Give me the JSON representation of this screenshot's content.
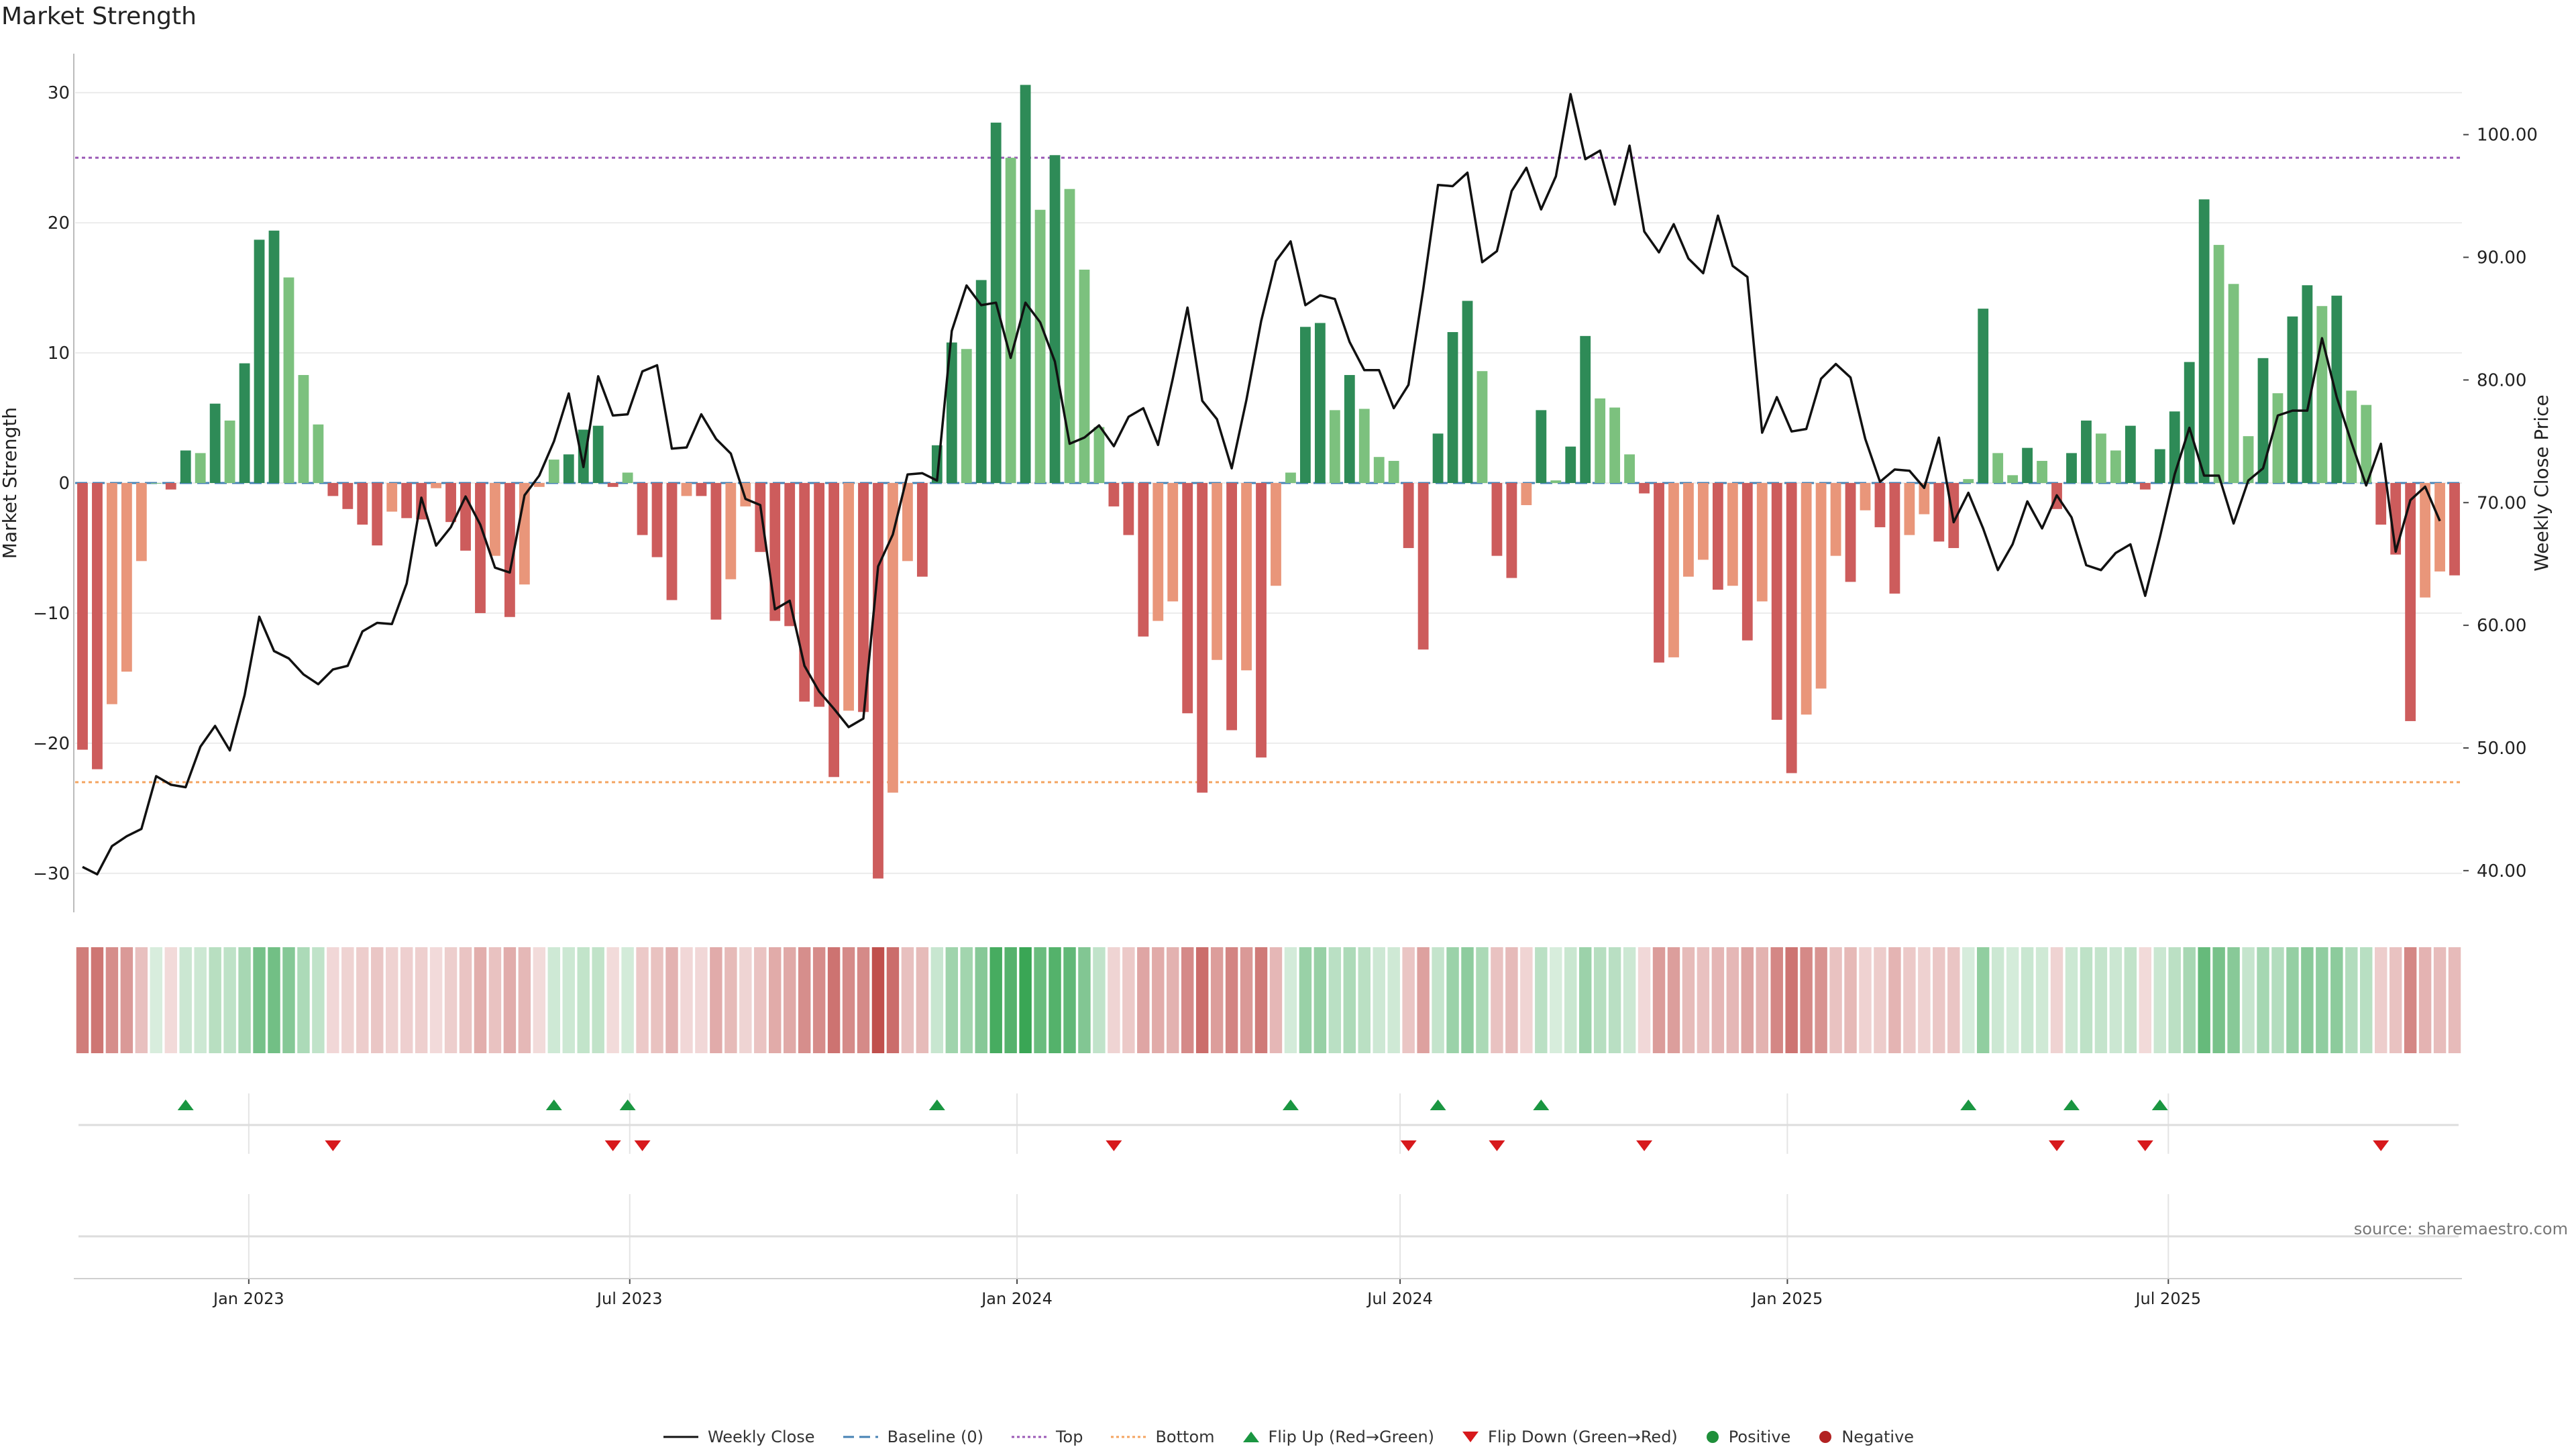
{
  "title": "Market Strength",
  "source": "source: sharemaestro.com",
  "colors": {
    "pos_strong": "#2e8b57",
    "pos_light": "#7cc17e",
    "neg_strong": "#cd5c5c",
    "neg_light": "#e9967a",
    "close_line": "#111111",
    "baseline": "#4682b4",
    "top": "#9b59b6",
    "bottom": "#f4a460",
    "flip_up": "#1a9641",
    "flip_down": "#d7191c"
  },
  "legend": [
    {
      "label": "Weekly Close",
      "kind": "line"
    },
    {
      "label": "Baseline (0)",
      "kind": "dash"
    },
    {
      "label": "Top",
      "kind": "dot-purple"
    },
    {
      "label": "Bottom",
      "kind": "dot-orange"
    },
    {
      "label": "Flip Up (Red→Green)",
      "kind": "tri-up"
    },
    {
      "label": "Flip Down (Green→Red)",
      "kind": "tri-down"
    },
    {
      "label": "Positive",
      "kind": "dot-green"
    },
    {
      "label": "Negative",
      "kind": "dot-red"
    }
  ],
  "chart_data": {
    "type": "bar",
    "start_date": "2022-10-14",
    "interval": "weekly",
    "ylabel": "Market Strength",
    "y2label": "Weekly Close Price",
    "ylim": [
      -33,
      33
    ],
    "y2lim": [
      36.6,
      106.6
    ],
    "yticks": [
      -30,
      -20,
      -10,
      0,
      10,
      20,
      30
    ],
    "y2ticks": [
      "40.00",
      "50.00",
      "60.00",
      "70.00",
      "80.00",
      "90.00",
      "100.00"
    ],
    "xticks": [
      {
        "date": "2023-01-01",
        "label": "Jan 2023"
      },
      {
        "date": "2023-07-01",
        "label": "Jul 2023"
      },
      {
        "date": "2024-01-01",
        "label": "Jan 2024"
      },
      {
        "date": "2024-07-01",
        "label": "Jul 2024"
      },
      {
        "date": "2025-01-01",
        "label": "Jan 2025"
      },
      {
        "date": "2025-07-01",
        "label": "Jul 2025"
      }
    ],
    "top_level": 25,
    "bottom_level": -23,
    "strength": [
      -20.5,
      -22,
      -17,
      -14.5,
      -6,
      0,
      -0.5,
      2.5,
      2.3,
      6.1,
      4.8,
      9.2,
      18.7,
      19.4,
      15.8,
      8.3,
      4.5,
      -1,
      -2,
      -3.2,
      -4.8,
      -2.2,
      -2.7,
      -2.8,
      -0.4,
      -3,
      -5.2,
      -10,
      -5.6,
      -10.3,
      -7.8,
      -0.3,
      1.8,
      2.2,
      4.1,
      4.4,
      -0.3,
      0.8,
      -4,
      -5.7,
      -9,
      -1,
      -1,
      -10.5,
      -7.4,
      -1.8,
      -5.3,
      -10.6,
      -11,
      -16.8,
      -17.2,
      -22.6,
      -17.5,
      -17.6,
      -30.4,
      -23.8,
      -6,
      -7.2,
      2.9,
      10.8,
      10.3,
      15.6,
      27.7,
      25,
      30.6,
      21,
      25.2,
      22.6,
      16.4,
      4.3,
      -1.8,
      -4,
      -11.8,
      -10.6,
      -9.1,
      -17.7,
      -23.8,
      -13.6,
      -19,
      -14.4,
      -21.1,
      -7.9,
      0.8,
      12,
      12.3,
      5.6,
      8.3,
      5.7,
      2,
      1.7,
      -5,
      -12.8,
      3.8,
      11.6,
      14,
      8.6,
      -5.6,
      -7.3,
      -1.7,
      5.6,
      0.2,
      2.8,
      11.3,
      6.5,
      5.8,
      2.2,
      -0.8,
      -13.8,
      -13.4,
      -7.2,
      -5.9,
      -8.2,
      -7.9,
      -12.1,
      -9.1,
      -18.2,
      -22.3,
      -17.8,
      -15.8,
      -5.6,
      -7.6,
      -2.1,
      -3.4,
      -8.5,
      -4,
      -2.4,
      -4.5,
      -5,
      0.3,
      13.4,
      2.3,
      0.6,
      2.7,
      1.7,
      -2,
      2.3,
      4.8,
      3.8,
      2.5,
      4.4,
      -0.5,
      2.6,
      5.5,
      9.3,
      21.8,
      18.3,
      15.3,
      3.6,
      9.6,
      6.9,
      12.8,
      15.2,
      13.6,
      14.4,
      7.1,
      6,
      -3.2,
      -5.5,
      -18.3,
      -8.8,
      -6.8,
      -7.1
    ],
    "close": [
      40.3,
      39.7,
      42,
      42.8,
      43.4,
      47.7,
      47,
      46.8,
      50.1,
      51.8,
      49.8,
      54.3,
      60.7,
      57.9,
      57.3,
      56,
      55.2,
      56.4,
      56.7,
      59.5,
      60.2,
      60.1,
      63.4,
      70.4,
      66.5,
      68,
      70.5,
      68.2,
      64.7,
      64.3,
      70.6,
      72.2,
      75,
      78.9,
      72.9,
      80.3,
      77.1,
      77.2,
      80.7,
      81.2,
      74.4,
      74.5,
      77.2,
      75.2,
      74,
      70.3,
      69.8,
      61.3,
      62,
      56.7,
      54.6,
      53.2,
      51.7,
      52.4,
      64.8,
      67.4,
      72.3,
      72.4,
      71.8,
      84,
      87.7,
      86.1,
      86.3,
      81.8,
      86.3,
      84.7,
      81.5,
      74.8,
      75.3,
      76.3,
      74.6,
      77,
      77.7,
      74.7,
      80.1,
      85.9,
      78.3,
      76.8,
      72.8,
      78.4,
      84.8,
      89.7,
      91.3,
      86.1,
      86.9,
      86.6,
      83.1,
      80.8,
      80.8,
      77.7,
      79.6,
      87.4,
      95.9,
      95.8,
      96.9,
      89.6,
      90.5,
      95.4,
      97.3,
      93.9,
      96.6,
      103.3,
      98,
      98.7,
      94.3,
      99.1,
      92.1,
      90.4,
      92.7,
      89.9,
      88.7,
      93.4,
      89.3,
      88.4,
      75.7,
      78.6,
      75.8,
      76,
      80.1,
      81.3,
      80.2,
      75.2,
      71.7,
      72.7,
      72.6,
      71.2,
      75.3,
      68.4,
      70.8,
      67.9,
      64.5,
      66.6,
      70.1,
      67.9,
      70.6,
      68.8,
      64.9,
      64.5,
      65.9,
      66.6,
      62.4,
      67.2,
      72.3,
      76.1,
      72.2,
      72.2,
      68.3,
      71.8,
      72.8,
      77.1,
      77.5,
      77.5,
      83.4,
      78.6,
      74.9,
      71.4,
      74.8,
      66,
      70.2,
      71.3,
      68.5
    ]
  }
}
